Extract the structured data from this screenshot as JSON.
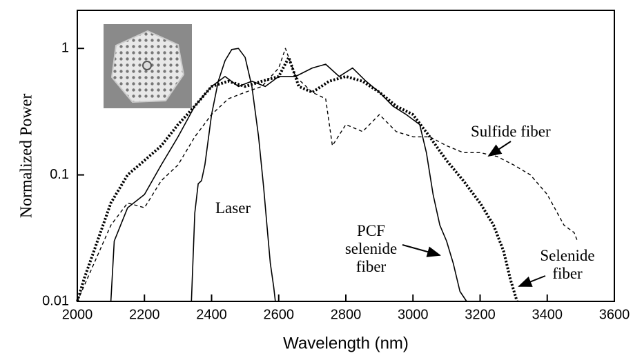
{
  "chart_data": {
    "type": "line",
    "x_label": "Wavelength (nm)",
    "y_label": "Normalized Power",
    "log_y": true,
    "xlim": [
      2000,
      3600
    ],
    "ylim": [
      0.01,
      2
    ],
    "xticks": [
      2000,
      2200,
      2400,
      2600,
      2800,
      3000,
      3200,
      3400,
      3600
    ],
    "yticks": [
      0.01,
      0.1,
      1
    ],
    "series": [
      {
        "name": "Laser",
        "color": "#000000",
        "line_style": "solid",
        "x": [
          2340,
          2350,
          2360,
          2370,
          2380,
          2400,
          2420,
          2440,
          2460,
          2480,
          2500,
          2520,
          2540,
          2555,
          2565,
          2575,
          2585,
          2590
        ],
        "values": [
          0.01,
          0.05,
          0.085,
          0.09,
          0.12,
          0.3,
          0.55,
          0.8,
          0.98,
          1.0,
          0.85,
          0.5,
          0.2,
          0.08,
          0.04,
          0.02,
          0.013,
          0.01
        ]
      },
      {
        "name": "PCF selenide fiber",
        "color": "#000000",
        "line_style": "solid",
        "x": [
          2100,
          2110,
          2150,
          2200,
          2250,
          2300,
          2350,
          2400,
          2440,
          2480,
          2520,
          2560,
          2600,
          2650,
          2700,
          2740,
          2780,
          2820,
          2860,
          2900,
          2940,
          2980,
          3020,
          3040,
          3060,
          3080,
          3100,
          3120,
          3140,
          3160
        ],
        "values": [
          0.01,
          0.03,
          0.055,
          0.07,
          0.12,
          0.2,
          0.35,
          0.5,
          0.6,
          0.5,
          0.55,
          0.5,
          0.6,
          0.6,
          0.7,
          0.75,
          0.6,
          0.7,
          0.55,
          0.45,
          0.35,
          0.3,
          0.25,
          0.15,
          0.07,
          0.04,
          0.03,
          0.02,
          0.012,
          0.01
        ]
      },
      {
        "name": "Selenide fiber",
        "color": "#000000",
        "line_style": "dotted",
        "x": [
          2000,
          2020,
          2060,
          2100,
          2150,
          2200,
          2250,
          2300,
          2350,
          2400,
          2450,
          2500,
          2550,
          2600,
          2630,
          2660,
          2700,
          2750,
          2800,
          2850,
          2900,
          2950,
          3000,
          3050,
          3100,
          3150,
          3200,
          3240,
          3270,
          3290,
          3310
        ],
        "values": [
          0.01,
          0.015,
          0.03,
          0.06,
          0.1,
          0.13,
          0.17,
          0.25,
          0.35,
          0.5,
          0.55,
          0.5,
          0.55,
          0.6,
          0.85,
          0.5,
          0.45,
          0.55,
          0.6,
          0.55,
          0.45,
          0.35,
          0.3,
          0.2,
          0.13,
          0.09,
          0.06,
          0.04,
          0.025,
          0.015,
          0.01
        ]
      },
      {
        "name": "Sulfide fiber",
        "color": "#000000",
        "line_style": "dashed",
        "x": [
          2000,
          2050,
          2100,
          2150,
          2200,
          2250,
          2300,
          2350,
          2400,
          2450,
          2500,
          2550,
          2600,
          2620,
          2650,
          2700,
          2740,
          2760,
          2800,
          2850,
          2900,
          2950,
          3000,
          3050,
          3100,
          3150,
          3200,
          3250,
          3300,
          3350,
          3400,
          3450,
          3480,
          3490
        ],
        "values": [
          0.01,
          0.02,
          0.04,
          0.06,
          0.055,
          0.09,
          0.12,
          0.2,
          0.3,
          0.4,
          0.45,
          0.5,
          0.7,
          1.0,
          0.6,
          0.45,
          0.4,
          0.17,
          0.25,
          0.22,
          0.3,
          0.22,
          0.2,
          0.2,
          0.17,
          0.15,
          0.15,
          0.14,
          0.12,
          0.1,
          0.07,
          0.04,
          0.035,
          0.03
        ]
      }
    ]
  }
}
